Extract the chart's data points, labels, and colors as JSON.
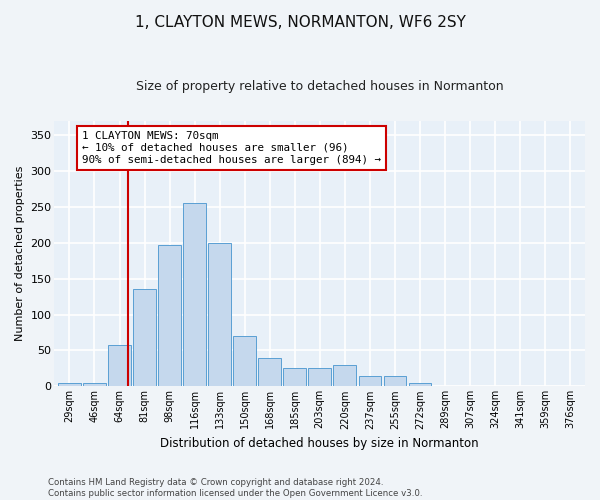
{
  "title": "1, CLAYTON MEWS, NORMANTON, WF6 2SY",
  "subtitle": "Size of property relative to detached houses in Normanton",
  "xlabel": "Distribution of detached houses by size in Normanton",
  "ylabel": "Number of detached properties",
  "categories": [
    "29sqm",
    "46sqm",
    "64sqm",
    "81sqm",
    "98sqm",
    "116sqm",
    "133sqm",
    "150sqm",
    "168sqm",
    "185sqm",
    "203sqm",
    "220sqm",
    "237sqm",
    "255sqm",
    "272sqm",
    "289sqm",
    "307sqm",
    "324sqm",
    "341sqm",
    "359sqm",
    "376sqm"
  ],
  "values": [
    5,
    5,
    57,
    135,
    197,
    255,
    200,
    70,
    40,
    25,
    25,
    30,
    15,
    15,
    5,
    0,
    0,
    0,
    0,
    0,
    1
  ],
  "bar_color": "#c5d8ed",
  "bar_edge_color": "#5a9fd4",
  "vline_color": "#cc0000",
  "annotation_text": "1 CLAYTON MEWS: 70sqm\n← 10% of detached houses are smaller (96)\n90% of semi-detached houses are larger (894) →",
  "annotation_box_color": "#ffffff",
  "annotation_box_edge": "#cc0000",
  "ylim": [
    0,
    370
  ],
  "yticks": [
    0,
    50,
    100,
    150,
    200,
    250,
    300,
    350
  ],
  "bg_color": "#e8f0f8",
  "grid_color": "#ffffff",
  "footer": "Contains HM Land Registry data © Crown copyright and database right 2024.\nContains public sector information licensed under the Open Government Licence v3.0."
}
